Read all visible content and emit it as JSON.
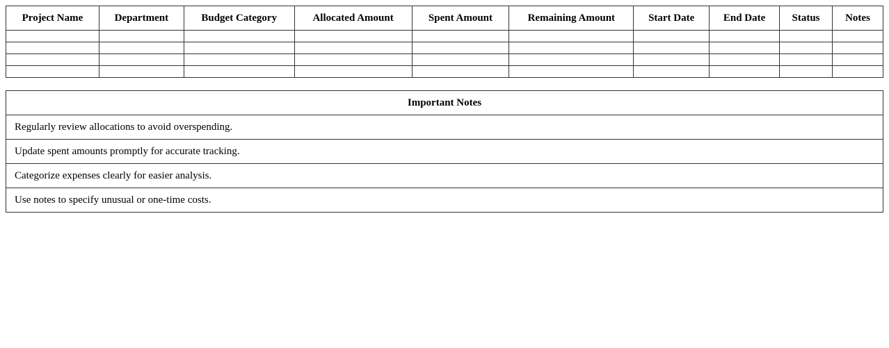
{
  "budget_table": {
    "headers": [
      "Project Name",
      "Department",
      "Budget Category",
      "Allocated Amount",
      "Spent Amount",
      "Remaining Amount",
      "Start Date",
      "End Date",
      "Status",
      "Notes"
    ]
  },
  "notes": {
    "title": "Important Notes",
    "items": [
      "Regularly review allocations to avoid overspending.",
      "Update spent amounts promptly for accurate tracking.",
      "Categorize expenses clearly for easier analysis.",
      "Use notes to specify unusual or one-time costs."
    ]
  }
}
